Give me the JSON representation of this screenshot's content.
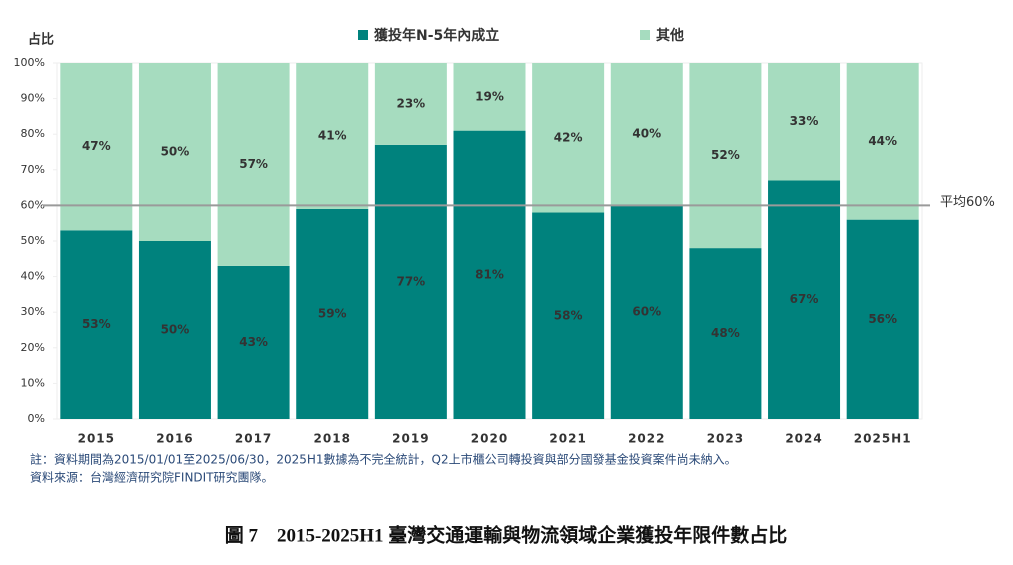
{
  "chart_data": {
    "type": "stacked_bar",
    "y_axis_label": "占比",
    "categories": [
      "2015",
      "2016",
      "2017",
      "2018",
      "2019",
      "2020",
      "2021",
      "2022",
      "2023",
      "2024",
      "2025H1"
    ],
    "series": [
      {
        "name": "獲投年N-5年內成立",
        "color": "#00827d",
        "values": [
          53,
          50,
          43,
          59,
          77,
          81,
          58,
          60,
          48,
          67,
          56
        ],
        "value_labels": [
          "53%",
          "50%",
          "43%",
          "59%",
          "77%",
          "81%",
          "58%",
          "60%",
          "48%",
          "67%",
          "56%"
        ]
      },
      {
        "name": "其他",
        "color": "#a6dcbf",
        "values": [
          47,
          50,
          57,
          41,
          23,
          19,
          42,
          40,
          52,
          33,
          44
        ],
        "value_labels": [
          "47%",
          "50%",
          "57%",
          "41%",
          "23%",
          "19%",
          "42%",
          "40%",
          "52%",
          "33%",
          "44%"
        ]
      }
    ],
    "ylim": [
      0,
      100
    ],
    "yticks": [
      {
        "value": 0,
        "label": "0%"
      },
      {
        "value": 10,
        "label": "10%"
      },
      {
        "value": 20,
        "label": "20%"
      },
      {
        "value": 30,
        "label": "30%"
      },
      {
        "value": 40,
        "label": "40%"
      },
      {
        "value": 50,
        "label": "50%"
      },
      {
        "value": 60,
        "label": "60%"
      },
      {
        "value": 70,
        "label": "70%"
      },
      {
        "value": 80,
        "label": "80%"
      },
      {
        "value": 90,
        "label": "90%"
      },
      {
        "value": 100,
        "label": "100%"
      }
    ],
    "grid": false,
    "reference_line": {
      "value": 60,
      "label": "平均60%",
      "color": "#9a9a9a"
    },
    "notes": [
      "註：資料期間為2015/01/01至2025/06/30，2025H1數據為不完全統計，Q2上市櫃公司轉投資與部分國發基金投資案件尚未納入。",
      "資料來源：台灣經濟研究院FINDIT研究團隊。"
    ],
    "caption": "圖 7　2015-2025H1 臺灣交通運輸與物流領域企業獲投年限件數占比"
  }
}
